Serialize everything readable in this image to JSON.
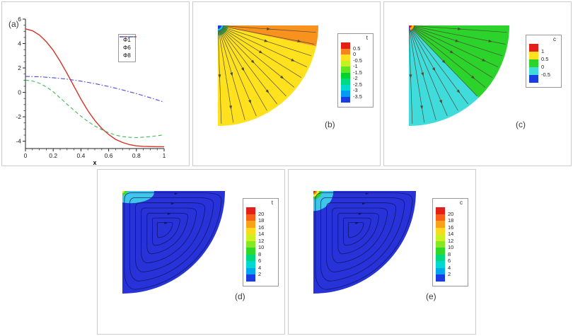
{
  "panels": [
    {
      "id": "a",
      "caption": "(a)"
    },
    {
      "id": "b",
      "caption": "(b)",
      "colorbar": {
        "title": "t",
        "colors": [
          "#e32017",
          "#f8821d",
          "#ffe11e",
          "#c2f321",
          "#62e423",
          "#00d42b",
          "#00da85",
          "#00d9d0",
          "#009cf2",
          "#1a3de3"
        ],
        "labels": [
          "0.5",
          "0",
          "-0.5",
          "-1",
          "-1.5",
          "-2",
          "-2.5",
          "-3",
          "-3.5"
        ]
      }
    },
    {
      "id": "c",
      "caption": "(c)",
      "colorbar": {
        "title": "c",
        "colors": [
          "#e32017",
          "#ffe11e",
          "#2bd32b",
          "#40dcdc",
          "#1a3de3"
        ],
        "labels": [
          "1",
          "0.5",
          "0",
          "-0.5"
        ]
      }
    },
    {
      "id": "d",
      "caption": "(d)",
      "colorbar": {
        "title": "t",
        "colors": [
          "#e32017",
          "#f8601a",
          "#faa11c",
          "#ffd91e",
          "#cdf021",
          "#84e822",
          "#2fd92a",
          "#00d87e",
          "#00d9d0",
          "#00a5f0",
          "#1a3de3"
        ],
        "labels": [
          "20",
          "18",
          "16",
          "14",
          "12",
          "10",
          "8",
          "6",
          "4",
          "2"
        ]
      }
    },
    {
      "id": "e",
      "caption": "(e)",
      "colorbar": {
        "title": "c",
        "colors": [
          "#e32017",
          "#f8601a",
          "#faa11c",
          "#ffd91e",
          "#cdf021",
          "#84e822",
          "#2fd92a",
          "#00d87e",
          "#00d9d0",
          "#00a5f0",
          "#1a3de3"
        ],
        "labels": [
          "20",
          "18",
          "16",
          "14",
          "12",
          "10",
          "8",
          "6",
          "4",
          "2"
        ]
      }
    }
  ],
  "chart_data": [
    {
      "type": "line",
      "panel": "a",
      "title": "",
      "xlabel": "x",
      "ylabel": "",
      "xlim": [
        0,
        1
      ],
      "ylim": [
        -4.6,
        6
      ],
      "x_ticks": [
        0,
        0.2,
        0.4,
        0.6,
        0.8,
        1
      ],
      "y_ticks": [
        -4,
        -2,
        0,
        2,
        4,
        6
      ],
      "grid": false,
      "legend_position": "top-right",
      "series": [
        {
          "name": "Φ1",
          "color": "#d63226",
          "style": "solid",
          "points": [
            [
              0,
              5.2
            ],
            [
              0.05,
              5.05
            ],
            [
              0.1,
              4.7
            ],
            [
              0.15,
              4.15
            ],
            [
              0.2,
              3.45
            ],
            [
              0.25,
              2.55
            ],
            [
              0.3,
              1.55
            ],
            [
              0.35,
              0.5
            ],
            [
              0.4,
              -0.55
            ],
            [
              0.45,
              -1.5
            ],
            [
              0.5,
              -2.3
            ],
            [
              0.55,
              -2.95
            ],
            [
              0.6,
              -3.45
            ],
            [
              0.65,
              -3.85
            ],
            [
              0.7,
              -4.1
            ],
            [
              0.75,
              -4.28
            ],
            [
              0.8,
              -4.38
            ],
            [
              0.85,
              -4.42
            ],
            [
              0.9,
              -4.44
            ],
            [
              0.95,
              -4.45
            ],
            [
              1,
              -4.45
            ]
          ]
        },
        {
          "name": "Φ6",
          "color": "#3dbb58",
          "style": "dashed",
          "points": [
            [
              0,
              1.0
            ],
            [
              0.05,
              0.93
            ],
            [
              0.1,
              0.75
            ],
            [
              0.15,
              0.45
            ],
            [
              0.2,
              0.05
            ],
            [
              0.25,
              -0.45
            ],
            [
              0.3,
              -0.97
            ],
            [
              0.35,
              -1.47
            ],
            [
              0.4,
              -1.95
            ],
            [
              0.45,
              -2.38
            ],
            [
              0.5,
              -2.75
            ],
            [
              0.55,
              -3.05
            ],
            [
              0.6,
              -3.3
            ],
            [
              0.65,
              -3.5
            ],
            [
              0.7,
              -3.62
            ],
            [
              0.75,
              -3.68
            ],
            [
              0.8,
              -3.7
            ],
            [
              0.85,
              -3.67
            ],
            [
              0.9,
              -3.62
            ],
            [
              0.95,
              -3.55
            ],
            [
              1,
              -3.48
            ]
          ]
        },
        {
          "name": "Φ8",
          "color": "#4a4ad4",
          "style": "dashdot",
          "points": [
            [
              0,
              1.3
            ],
            [
              0.1,
              1.28
            ],
            [
              0.2,
              1.2
            ],
            [
              0.3,
              1.08
            ],
            [
              0.4,
              0.92
            ],
            [
              0.5,
              0.72
            ],
            [
              0.6,
              0.48
            ],
            [
              0.7,
              0.2
            ],
            [
              0.8,
              -0.1
            ],
            [
              0.9,
              -0.44
            ],
            [
              1,
              -0.8
            ]
          ]
        }
      ]
    },
    {
      "type": "heatmap",
      "panel": "b",
      "variable": "t",
      "shape": "quarter-disk-fan",
      "streamlines": "radial-from-apex",
      "colorbar_labels": [
        0.5,
        0,
        -0.5,
        -1,
        -1.5,
        -2,
        -2.5,
        -3,
        -3.5
      ],
      "regions": [
        {
          "angle_from": 0,
          "angle_to": 12,
          "color": "#f8911d",
          "value_band": "0 to 0.5"
        },
        {
          "angle_from": 12,
          "angle_to": 90,
          "color": "#ffe11e",
          "value_band": "-0.5 to 0"
        }
      ],
      "apex_spots": [
        {
          "r_frac": 0.1,
          "color": "#2fc93c"
        },
        {
          "r_frac": 0.063,
          "color": "#14c9d9"
        },
        {
          "r_frac": 0.035,
          "color": "#2138e8"
        }
      ]
    },
    {
      "type": "heatmap",
      "panel": "c",
      "variable": "c",
      "shape": "quarter-disk-fan",
      "streamlines": "radial-from-apex",
      "colorbar_labels": [
        1,
        0.5,
        0,
        -0.5
      ],
      "regions": [
        {
          "angle_from": 0,
          "angle_to": 46,
          "color": "#2bd32b",
          "value_band": "0 to 0.5"
        },
        {
          "angle_from": 46,
          "angle_to": 90,
          "color": "#40dcdc",
          "value_band": "-0.5 to 0"
        }
      ],
      "apex_spots": [
        {
          "r_frac": 0.05,
          "color": "#ffae00"
        },
        {
          "r_frac": 0.028,
          "color": "#e32017"
        }
      ],
      "apex_wedges": [
        {
          "angle_from": 75,
          "angle_to": 90,
          "r_frac": 0.05,
          "color": "#2138e8"
        }
      ]
    },
    {
      "type": "heatmap",
      "panel": "d",
      "variable": "t",
      "shape": "quarter-disk",
      "streamlines": "recirculating-loops",
      "colorbar_labels": [
        20,
        18,
        16,
        14,
        12,
        10,
        8,
        6,
        4,
        2
      ],
      "body_color": "#2733d9",
      "apex_patch": {
        "type": "half-ellipse-on-top-edge",
        "rx_frac": 0.23,
        "ry_frac": 0.105,
        "color": "#3ec6ea"
      },
      "apex_spots": [
        {
          "r_frac": 0.045,
          "color": "#3fe11f"
        },
        {
          "r_frac": 0.021,
          "color": "#ffe11e"
        }
      ]
    },
    {
      "type": "heatmap",
      "panel": "e",
      "variable": "c",
      "shape": "quarter-disk",
      "streamlines": "recirculating-loops",
      "colorbar_labels": [
        20,
        18,
        16,
        14,
        12,
        10,
        8,
        6,
        4,
        2
      ],
      "body_color": "#2733d9",
      "apex_spots": [
        {
          "r_frac": 0.195,
          "color": "#3ec6ea"
        },
        {
          "r_frac": 0.083,
          "color": "#2bd32b"
        },
        {
          "r_frac": 0.055,
          "color": "#f3ee16"
        },
        {
          "r_frac": 0.035,
          "color": "#f8831d"
        },
        {
          "r_frac": 0.02,
          "color": "#e32017"
        }
      ]
    }
  ]
}
